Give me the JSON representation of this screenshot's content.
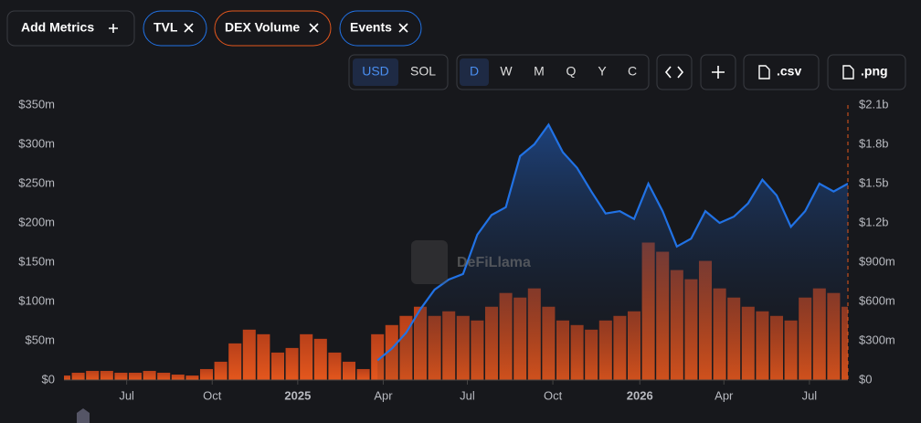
{
  "ui": {
    "add_metrics": "Add Metrics",
    "events": "Events",
    "currency": [
      "USD",
      "SOL"
    ],
    "periods": [
      "D",
      "W",
      "M",
      "Q",
      "Y",
      "C"
    ],
    "csv": ".csv",
    "png": ".png",
    "watermark": "DeFiLlama"
  },
  "chart_data": {
    "type": "combo",
    "categories": [
      null,
      null,
      null,
      null,
      null,
      null,
      null,
      null,
      null,
      null,
      null,
      null,
      null,
      null,
      null,
      null,
      null,
      null,
      null,
      null,
      null,
      null,
      null,
      null,
      null,
      null,
      null,
      null,
      null,
      null,
      null,
      null,
      null,
      null,
      null,
      null,
      null,
      null,
      null,
      null,
      null,
      null,
      null,
      null,
      null,
      null,
      null,
      null,
      null,
      null,
      null,
      null,
      null,
      null,
      null,
      null
    ],
    "series": [
      {
        "name": "TVL",
        "type": "line",
        "color": "#2172e5",
        "values": [
          null,
          null,
          null,
          null,
          null,
          null,
          null,
          null,
          null,
          null,
          null,
          null,
          null,
          null,
          null,
          null,
          null,
          null,
          null,
          null,
          null,
          null,
          25,
          40,
          60,
          90,
          115,
          128,
          135,
          185,
          210,
          220,
          285,
          300,
          325,
          290,
          270,
          240,
          212,
          215,
          205,
          250,
          215,
          170,
          180,
          215,
          200,
          208,
          225,
          255,
          235,
          195,
          215,
          250,
          240,
          250
        ]
      },
      {
        "name": "DEX Volume",
        "type": "bar",
        "color": "#e4571d",
        "axis": "y2",
        "values": [
          35,
          56,
          70,
          70,
          56,
          56,
          70,
          56,
          42,
          35,
          84,
          140,
          280,
          385,
          350,
          210,
          245,
          350,
          315,
          210,
          140,
          84,
          350,
          420,
          490,
          560,
          490,
          525,
          490,
          455,
          560,
          665,
          630,
          700,
          560,
          455,
          420,
          385,
          455,
          490,
          525,
          1050,
          980,
          840,
          770,
          910,
          700,
          630,
          560,
          525,
          490,
          455,
          630,
          700,
          665,
          560
        ]
      }
    ],
    "ylim": [
      0,
      350
    ],
    "yticks": [
      {
        "value": 0,
        "label": "$0"
      },
      {
        "value": 50,
        "label": "$50m"
      },
      {
        "value": 100,
        "label": "$100m"
      },
      {
        "value": 150,
        "label": "$150m"
      },
      {
        "value": 200,
        "label": "$200m"
      },
      {
        "value": 250,
        "label": "$250m"
      },
      {
        "value": 300,
        "label": "$300m"
      },
      {
        "value": 350,
        "label": "$350m"
      }
    ],
    "y2lim": [
      0,
      2100
    ],
    "y2ticks": [
      {
        "value": 0,
        "label": "$0"
      },
      {
        "value": 300,
        "label": "$300m"
      },
      {
        "value": 600,
        "label": "$600m"
      },
      {
        "value": 900,
        "label": "$900m"
      },
      {
        "value": 1200,
        "label": "$1.2b"
      },
      {
        "value": 1500,
        "label": "$1.5b"
      },
      {
        "value": 1800,
        "label": "$1.8b"
      },
      {
        "value": 2100,
        "label": "$2.1b"
      }
    ],
    "xticks": [
      {
        "value": 4.4,
        "label": "Jul"
      },
      {
        "value": 10.4,
        "label": "Oct"
      },
      {
        "value": 16.4,
        "label": "2025"
      },
      {
        "value": 22.4,
        "label": "Apr"
      },
      {
        "value": 28.3,
        "label": "Jul"
      },
      {
        "value": 34.3,
        "label": "Oct"
      },
      {
        "value": 40.4,
        "label": "2026"
      },
      {
        "value": 46.3,
        "label": "Apr"
      },
      {
        "value": 52.3,
        "label": "Jul"
      }
    ]
  }
}
